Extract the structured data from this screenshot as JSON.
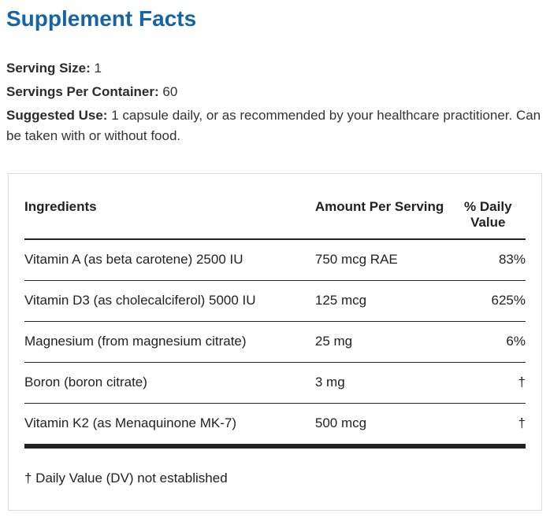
{
  "page": {
    "title": "Supplement Facts"
  },
  "meta": {
    "serving_size_label": "Serving Size:",
    "serving_size_value": "1",
    "servings_per_container_label": "Servings Per Container:",
    "servings_per_container_value": "60",
    "suggested_use_label": "Suggested Use:",
    "suggested_use_value": "1 capsule daily, or as recommended by your healthcare practitioner. Can be taken with or without food."
  },
  "table": {
    "headers": [
      "Ingredients",
      "Amount Per Serving",
      "% Daily Value"
    ],
    "rows": [
      {
        "ingredient": "Vitamin A (as beta carotene) 2500 IU",
        "amount": "750 mcg RAE",
        "daily_value": "83%"
      },
      {
        "ingredient": "Vitamin D3 (as cholecalciferol) 5000 IU",
        "amount": "125 mcg",
        "daily_value": "625%"
      },
      {
        "ingredient": "Magnesium (from magnesium citrate)",
        "amount": "25 mg",
        "daily_value": "6%"
      },
      {
        "ingredient": "Boron (boron citrate)",
        "amount": "3 mg",
        "daily_value": "†"
      },
      {
        "ingredient": "Vitamin K2 (as Menaquinone MK-7)",
        "amount": "500 mcg",
        "daily_value": "†"
      }
    ],
    "footnote": "† Daily Value (DV) not established"
  },
  "colors": {
    "title_blue": "#1465a8",
    "body_text": "#333333",
    "table_text": "#222222",
    "panel_border": "#dddddd",
    "rule_dark": "#222222"
  }
}
